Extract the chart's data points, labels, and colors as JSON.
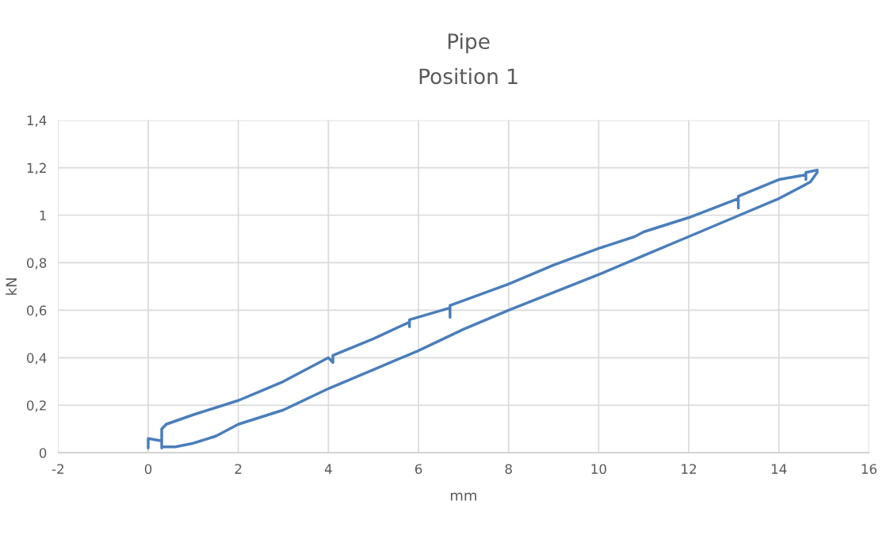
{
  "chart_data": {
    "type": "line",
    "title": "Pipe",
    "subtitle": "Position 1",
    "xlabel": "mm",
    "ylabel": "kN",
    "xlim": [
      -2,
      16
    ],
    "xticks": [
      -2,
      0,
      2,
      4,
      6,
      8,
      10,
      12,
      14,
      16
    ],
    "ylim": [
      0,
      1.4
    ],
    "yticks": [
      0,
      {
        "value": 0.2,
        "label": "0,2"
      },
      {
        "value": 0.4,
        "label": "0,4"
      },
      {
        "value": 0.6,
        "label": "0,6"
      },
      {
        "value": 0.8,
        "label": "0,8"
      },
      1,
      {
        "value": 1.2,
        "label": "1,2"
      },
      {
        "value": 1.4,
        "label": "1,4"
      }
    ],
    "grid": true,
    "marker": "none",
    "line_style": "solid",
    "series": [
      {
        "color": "#4a7ebb",
        "x": [
          0,
          0,
          0.3,
          0.3,
          0.3,
          0.4,
          1.0,
          1.5,
          2.0,
          2.5,
          3.0,
          4.0,
          4.1,
          4.1,
          5.0,
          5.8,
          5.8,
          5.8,
          6.7,
          6.7,
          6.7,
          8.0,
          9.0,
          10.0,
          10.8,
          11.0,
          12.0,
          13.1,
          13.1,
          13.1,
          14.0,
          14.6,
          14.6,
          14.6,
          14.85,
          14.85,
          14.7,
          14.0,
          13.0,
          12.0,
          11.0,
          10.0,
          9.0,
          8.0,
          7.0,
          6.0,
          5.0,
          4.0,
          3.0,
          2.0,
          1.5,
          1.0,
          0.6,
          0.3,
          0.3
        ],
        "values": [
          0.02,
          0.06,
          0.05,
          0.02,
          0.1,
          0.12,
          0.16,
          0.19,
          0.22,
          0.26,
          0.3,
          0.4,
          0.38,
          0.41,
          0.48,
          0.55,
          0.53,
          0.56,
          0.61,
          0.57,
          0.62,
          0.71,
          0.79,
          0.86,
          0.91,
          0.93,
          0.99,
          1.07,
          1.03,
          1.08,
          1.15,
          1.17,
          1.15,
          1.18,
          1.19,
          1.18,
          1.14,
          1.07,
          0.99,
          0.91,
          0.83,
          0.75,
          0.675,
          0.6,
          0.52,
          0.43,
          0.35,
          0.27,
          0.18,
          0.12,
          0.07,
          0.04,
          0.025,
          0.025,
          0.05
        ]
      }
    ]
  }
}
